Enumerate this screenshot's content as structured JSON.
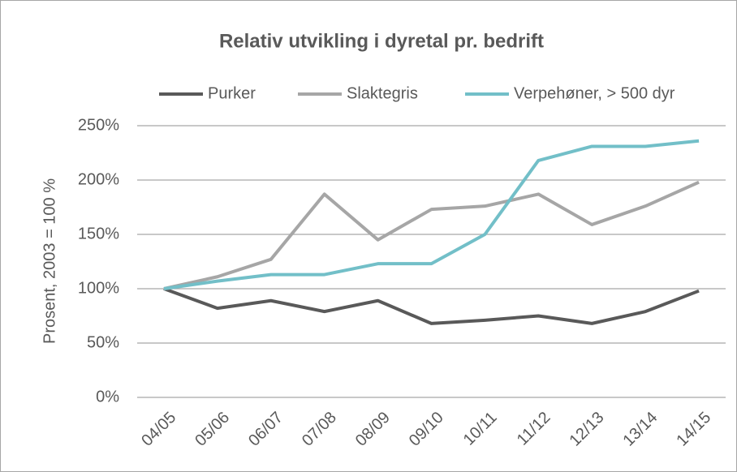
{
  "chart_data": {
    "type": "line",
    "title": "Relativ utvikling i dyretal pr. bedrift",
    "y_label": "Prosent, 2003 = 100 %",
    "categories": [
      "04/05",
      "05/06",
      "06/07",
      "07/08",
      "08/09",
      "09/10",
      "10/11",
      "11/12",
      "12/13",
      "13/14",
      "14/15"
    ],
    "series": [
      {
        "name": "Purker",
        "color": "#595959",
        "values": [
          100,
          82,
          89,
          79,
          89,
          68,
          71,
          75,
          68,
          79,
          98
        ]
      },
      {
        "name": "Slaktegris",
        "color": "#a6a6a6",
        "values": [
          100,
          111,
          127,
          187,
          145,
          173,
          176,
          187,
          159,
          176,
          198
        ]
      },
      {
        "name": "Verpehøner, > 500 dyr",
        "color": "#72bfc8",
        "values": [
          100,
          107,
          113,
          113,
          123,
          123,
          150,
          218,
          231,
          231,
          236
        ]
      }
    ],
    "ylim": [
      0,
      250
    ],
    "yticks": [
      {
        "value": 0,
        "label": "0%"
      },
      {
        "value": 50,
        "label": "50%"
      },
      {
        "value": 100,
        "label": "100%"
      },
      {
        "value": 150,
        "label": "150%"
      },
      {
        "value": 200,
        "label": "200%"
      },
      {
        "value": 250,
        "label": "250%"
      }
    ],
    "grid": true,
    "legend": "top"
  }
}
